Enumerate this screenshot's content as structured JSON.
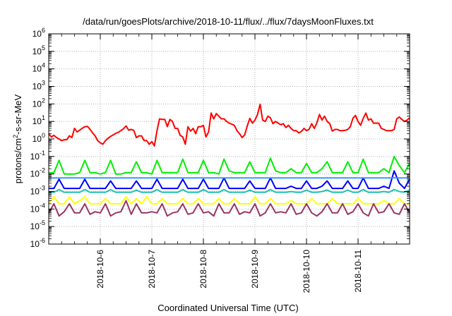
{
  "chart_data": {
    "type": "line",
    "title": "/data/run/goesPlots/archive/2018-10-11/flux/../flux/7daysMoonFluxes.txt",
    "xlabel": "Coordinated Universal Time (UTC)",
    "ylabel": "protons/cm²-s-sr-MeV",
    "yscale": "log",
    "ylim_exponents": [
      -6,
      6
    ],
    "y_tick_labels": [
      "10-6",
      "10-5",
      "10-4",
      "10-3",
      "10-2",
      "10-1",
      "100",
      "101",
      "102",
      "103",
      "104",
      "105",
      "106"
    ],
    "x_range_days": [
      "2018-10-05",
      "2018-10-12"
    ],
    "x_tick_labels": [
      "2018-10-6",
      "2018-10-7",
      "2018-10-8",
      "2018-10-9",
      "2018-10-10",
      "2018-10-11"
    ],
    "grid": true,
    "legend": "none",
    "series": [
      {
        "color": "#ff0000",
        "x": [
          0,
          0.05,
          0.1,
          0.15,
          0.2,
          0.25,
          0.3,
          0.35,
          0.4,
          0.45,
          0.5,
          0.55,
          0.6,
          0.65,
          0.7,
          0.75,
          0.8,
          0.85,
          0.9,
          0.95,
          1,
          1.05,
          1.1,
          1.15,
          1.2,
          1.25,
          1.3,
          1.35,
          1.4,
          1.45,
          1.5,
          1.55,
          1.6,
          1.65,
          1.7,
          1.75,
          1.8,
          1.85,
          1.9,
          1.95,
          2,
          2.05,
          2.1,
          2.15,
          2.2,
          2.25,
          2.3,
          2.35,
          2.4,
          2.45,
          2.5,
          2.55,
          2.6,
          2.65,
          2.7,
          2.75,
          2.8,
          2.85,
          2.9,
          2.95,
          3,
          3.05,
          3.1,
          3.15,
          3.2,
          3.25,
          3.3,
          3.35,
          3.4,
          3.45,
          3.5,
          3.55,
          3.6,
          3.65,
          3.7,
          3.75,
          3.8,
          3.85,
          3.9,
          3.95,
          4,
          4.05,
          4.1,
          4.15,
          4.2,
          4.25,
          4.3,
          4.35,
          4.4,
          4.45,
          4.5,
          4.55,
          4.6,
          4.65,
          4.7,
          4.75,
          4.8,
          4.85,
          4.9,
          4.95,
          5,
          5.05,
          5.1,
          5.15,
          5.2,
          5.25,
          5.3,
          5.35,
          5.4,
          5.45,
          5.5,
          5.55,
          5.6,
          5.65,
          5.7,
          5.75,
          5.8,
          5.85,
          5.9,
          5.95,
          6,
          6.05,
          6.1,
          6.15,
          6.2,
          6.25,
          6.3,
          6.35,
          6.4,
          6.45,
          6.5,
          6.55,
          6.6,
          6.65,
          6.7,
          6.75,
          6.8,
          6.85,
          6.9,
          6.95,
          7
        ],
        "y": [
          2,
          1.3,
          1.6,
          1.2,
          1,
          0.8,
          0.9,
          0.9,
          1.5,
          1.2,
          4,
          2.5,
          3.2,
          4.1,
          5,
          5.2,
          3.6,
          2.2,
          1.5,
          0.8,
          0.6,
          0.5,
          0.8,
          1.1,
          1.4,
          1.7,
          2.1,
          2.4,
          3,
          3.8,
          5.5,
          3.2,
          3.5,
          3.1,
          1.2,
          1.5,
          1.5,
          0.8,
          0.8,
          0.5,
          0.7,
          0.4,
          3,
          14,
          13,
          13,
          5,
          13,
          10,
          4,
          4,
          1.6,
          1.3,
          0.5,
          5,
          2.8,
          4,
          2,
          5,
          5,
          6,
          1.3,
          2.5,
          30,
          14,
          28,
          20,
          14,
          14,
          10,
          8,
          7,
          6,
          3,
          2,
          1.2,
          1.7,
          5.5,
          15,
          8,
          12,
          25,
          95,
          12,
          10,
          20,
          16,
          7.5,
          10,
          8,
          6.5,
          7.5,
          4.5,
          6,
          4,
          3,
          3,
          2.2,
          2.7,
          4,
          3,
          3.5,
          7.5,
          4,
          8,
          25,
          12,
          20,
          10,
          7.5,
          2.8,
          3.5,
          3.5,
          3,
          3,
          3.1,
          3.5,
          5,
          15,
          22,
          10,
          6,
          15,
          30,
          12,
          14,
          8,
          8,
          8,
          4,
          3.5,
          3,
          3,
          3,
          3.5,
          14,
          18,
          13,
          10,
          12,
          16
        ]
      },
      {
        "color": "#00ee00",
        "x": [
          0,
          0.1,
          0.2,
          0.3,
          0.4,
          0.5,
          0.6,
          0.7,
          0.8,
          0.9,
          1,
          1.1,
          1.2,
          1.3,
          1.4,
          1.5,
          1.6,
          1.7,
          1.8,
          1.9,
          2,
          2.1,
          2.2,
          2.3,
          2.4,
          2.5,
          2.6,
          2.7,
          2.8,
          2.9,
          3,
          3.1,
          3.2,
          3.3,
          3.4,
          3.5,
          3.6,
          3.7,
          3.8,
          3.9,
          4,
          4.1,
          4.2,
          4.3,
          4.4,
          4.5,
          4.6,
          4.7,
          4.8,
          4.9,
          5,
          5.1,
          5.2,
          5.3,
          5.4,
          5.5,
          5.6,
          5.7,
          5.8,
          5.9,
          6,
          6.1,
          6.2,
          6.3,
          6.4,
          6.5,
          6.6,
          6.7,
          6.8,
          6.9,
          7
        ],
        "y": [
          0.012,
          0.012,
          0.06,
          0.01,
          0.01,
          0.01,
          0.012,
          0.06,
          0.012,
          0.012,
          0.01,
          0.012,
          0.06,
          0.01,
          0.01,
          0.012,
          0.012,
          0.05,
          0.012,
          0.012,
          0.01,
          0.06,
          0.012,
          0.012,
          0.012,
          0.012,
          0.07,
          0.012,
          0.012,
          0.012,
          0.06,
          0.012,
          0.012,
          0.01,
          0.07,
          0.015,
          0.012,
          0.012,
          0.012,
          0.05,
          0.012,
          0.012,
          0.012,
          0.08,
          0.015,
          0.012,
          0.012,
          0.02,
          0.012,
          0.012,
          0.04,
          0.012,
          0.012,
          0.02,
          0.05,
          0.012,
          0.012,
          0.012,
          0.05,
          0.012,
          0.012,
          0.07,
          0.012,
          0.012,
          0.012,
          0.02,
          0.012,
          0.1,
          0.03,
          0.012,
          0.04
        ]
      },
      {
        "color": "#0000ff",
        "x": [
          0,
          0.1,
          0.2,
          0.3,
          0.4,
          0.5,
          0.6,
          0.7,
          0.8,
          0.9,
          1,
          1.1,
          1.2,
          1.3,
          1.4,
          1.5,
          1.6,
          1.7,
          1.8,
          1.9,
          2,
          2.1,
          2.2,
          2.3,
          2.4,
          2.5,
          2.6,
          2.7,
          2.8,
          2.9,
          3,
          3.1,
          3.2,
          3.3,
          3.4,
          3.5,
          3.6,
          3.7,
          3.8,
          3.9,
          4,
          4.1,
          4.2,
          4.3,
          4.4,
          4.5,
          4.6,
          4.7,
          4.8,
          4.9,
          5,
          5.1,
          5.2,
          5.3,
          5.4,
          5.5,
          5.6,
          5.7,
          5.8,
          5.9,
          6,
          6.1,
          6.2,
          6.3,
          6.4,
          6.5,
          6.6,
          6.7,
          6.8,
          6.9,
          7
        ],
        "y": [
          0.0015,
          0.0015,
          0.005,
          0.0015,
          0.0015,
          0.0015,
          0.0015,
          0.005,
          0.0015,
          0.0015,
          0.0015,
          0.0015,
          0.004,
          0.0015,
          0.0015,
          0.0015,
          0.0015,
          0.004,
          0.0015,
          0.0015,
          0.0015,
          0.005,
          0.0015,
          0.0015,
          0.0015,
          0.0015,
          0.005,
          0.0015,
          0.0015,
          0.0015,
          0.005,
          0.0015,
          0.0015,
          0.0015,
          0.006,
          0.0015,
          0.0015,
          0.0015,
          0.0015,
          0.004,
          0.0015,
          0.0015,
          0.0015,
          0.006,
          0.0015,
          0.0015,
          0.0015,
          0.002,
          0.0015,
          0.0015,
          0.004,
          0.0015,
          0.0015,
          0.002,
          0.004,
          0.0015,
          0.0015,
          0.0015,
          0.004,
          0.0015,
          0.0015,
          0.006,
          0.0015,
          0.0015,
          0.0015,
          0.002,
          0.0015,
          0.015,
          0.003,
          0.0015,
          0.005
        ]
      },
      {
        "color": "#3a96ff",
        "x": [
          0,
          1,
          2,
          3,
          4,
          5,
          6,
          7
        ],
        "y": [
          0.006,
          0.006,
          0.006,
          0.006,
          0.006,
          0.006,
          0.006,
          0.006
        ]
      },
      {
        "color": "#20c0b0",
        "x": [
          0,
          0.1,
          0.2,
          0.3,
          0.4,
          0.5,
          0.6,
          0.7,
          0.8,
          0.9,
          1,
          1.1,
          1.2,
          1.3,
          1.4,
          1.5,
          1.6,
          1.7,
          1.8,
          1.9,
          2,
          2.1,
          2.2,
          2.3,
          2.4,
          2.5,
          2.6,
          2.7,
          2.8,
          2.9,
          3,
          3.1,
          3.2,
          3.3,
          3.4,
          3.5,
          3.6,
          3.7,
          3.8,
          3.9,
          4,
          4.1,
          4.2,
          4.3,
          4.4,
          4.5,
          4.6,
          4.7,
          4.8,
          4.9,
          5,
          5.1,
          5.2,
          5.3,
          5.4,
          5.5,
          5.6,
          5.7,
          5.8,
          5.9,
          6,
          6.1,
          6.2,
          6.3,
          6.4,
          6.5,
          6.6,
          6.7,
          6.8,
          6.9,
          7
        ],
        "y": [
          0.0009,
          0.0009,
          0.0013,
          0.0009,
          0.0009,
          0.0009,
          0.0009,
          0.0013,
          0.0009,
          0.0009,
          0.0009,
          0.0009,
          0.0013,
          0.0009,
          0.0009,
          0.0009,
          0.0009,
          0.0012,
          0.0009,
          0.0009,
          0.0009,
          0.0013,
          0.0009,
          0.0009,
          0.0009,
          0.0009,
          0.0013,
          0.0009,
          0.0009,
          0.0009,
          0.0013,
          0.0009,
          0.0009,
          0.0009,
          0.0013,
          0.0009,
          0.0009,
          0.0009,
          0.0009,
          0.0012,
          0.0009,
          0.0009,
          0.0009,
          0.0013,
          0.0009,
          0.0009,
          0.0009,
          0.001,
          0.0009,
          0.0009,
          0.0012,
          0.0009,
          0.0009,
          0.001,
          0.0012,
          0.0009,
          0.0009,
          0.0009,
          0.0012,
          0.0009,
          0.0009,
          0.0013,
          0.0009,
          0.0009,
          0.0009,
          0.001,
          0.0009,
          0.0013,
          0.001,
          0.0009,
          0.0012
        ]
      },
      {
        "color": "#ffff00",
        "x": [
          0,
          0.1,
          0.2,
          0.3,
          0.4,
          0.5,
          0.6,
          0.7,
          0.8,
          0.9,
          1,
          1.1,
          1.2,
          1.3,
          1.4,
          1.5,
          1.6,
          1.7,
          1.8,
          1.9,
          2,
          2.1,
          2.2,
          2.3,
          2.4,
          2.5,
          2.6,
          2.7,
          2.8,
          2.9,
          3,
          3.1,
          3.2,
          3.3,
          3.4,
          3.5,
          3.6,
          3.7,
          3.8,
          3.9,
          4,
          4.1,
          4.2,
          4.3,
          4.4,
          4.5,
          4.6,
          4.7,
          4.8,
          4.9,
          5,
          5.1,
          5.2,
          5.3,
          5.4,
          5.5,
          5.6,
          5.7,
          5.8,
          5.9,
          6,
          6.1,
          6.2,
          6.3,
          6.4,
          6.5,
          6.6,
          6.7,
          6.8,
          6.9,
          7
        ],
        "y": [
          0.0002,
          0.0005,
          0.0002,
          0.0002,
          0.0005,
          0.0002,
          0.0003,
          0.0005,
          0.0002,
          0.0002,
          0.0002,
          0.0004,
          0.0002,
          0.0002,
          0.0002,
          0.0005,
          0.0002,
          0.0004,
          0.0002,
          0.0005,
          0.0002,
          0.0002,
          0.0004,
          0.0002,
          0.0002,
          0.0002,
          0.0004,
          0.0002,
          0.0002,
          0.0004,
          0.0002,
          0.0002,
          0.0002,
          0.0004,
          0.0002,
          0.0002,
          0.0004,
          0.0002,
          0.0002,
          0.0002,
          0.0005,
          0.0002,
          0.0002,
          0.0004,
          0.0002,
          0.0002,
          0.0002,
          0.0003,
          0.0002,
          0.0002,
          0.0002,
          0.0004,
          0.0002,
          0.0002,
          0.0002,
          0.0004,
          0.0002,
          0.0002,
          0.0002,
          0.0002,
          0.0004,
          0.0002,
          0.0002,
          0.0002,
          0.0002,
          0.0003,
          0.0002,
          0.0002,
          0.0004,
          0.0002,
          0.0002
        ]
      },
      {
        "color": "#993366",
        "x": [
          0,
          0.1,
          0.2,
          0.3,
          0.4,
          0.5,
          0.6,
          0.7,
          0.8,
          0.9,
          1,
          1.1,
          1.2,
          1.3,
          1.4,
          1.5,
          1.6,
          1.7,
          1.8,
          1.9,
          2,
          2.1,
          2.2,
          2.3,
          2.4,
          2.5,
          2.6,
          2.7,
          2.8,
          2.9,
          3,
          3.1,
          3.2,
          3.3,
          3.4,
          3.5,
          3.6,
          3.7,
          3.8,
          3.9,
          4,
          4.1,
          4.2,
          4.3,
          4.4,
          4.5,
          4.6,
          4.7,
          4.8,
          4.9,
          5,
          5.1,
          5.2,
          5.3,
          5.4,
          5.5,
          5.6,
          5.7,
          5.8,
          5.9,
          6,
          6.1,
          6.2,
          6.3,
          6.4,
          6.5,
          6.6,
          6.7,
          6.8,
          6.9,
          7
        ],
        "y": [
          6e-05,
          0.0002,
          4e-05,
          7e-05,
          0.0002,
          6e-05,
          6e-05,
          0.0002,
          5e-05,
          7e-05,
          6e-05,
          0.0002,
          4e-05,
          6e-05,
          7e-05,
          0.0003,
          5e-05,
          0.0002,
          6e-05,
          6e-05,
          7e-05,
          6e-05,
          0.0002,
          4e-05,
          6e-05,
          7e-05,
          0.0002,
          5e-05,
          6e-05,
          0.0002,
          6e-05,
          7e-05,
          4e-05,
          0.0002,
          6e-05,
          6e-05,
          0.0002,
          5e-05,
          7e-05,
          6e-05,
          0.0002,
          4e-05,
          6e-05,
          0.0002,
          6e-05,
          7e-05,
          6e-05,
          0.0002,
          5e-05,
          6e-05,
          0.0002,
          6e-05,
          4e-05,
          7e-05,
          0.0002,
          6e-05,
          6e-05,
          0.0002,
          5e-05,
          7e-05,
          0.0002,
          6e-05,
          4e-05,
          0.0002,
          6e-05,
          7e-05,
          0.0002,
          6e-05,
          5e-05,
          0.0002,
          6e-05
        ]
      }
    ]
  }
}
